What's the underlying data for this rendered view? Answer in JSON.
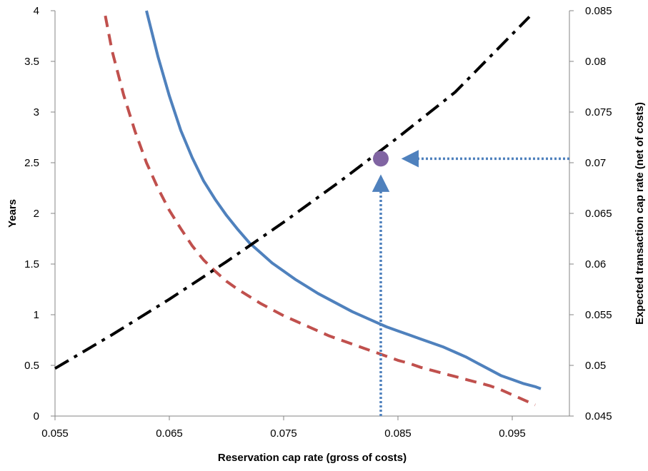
{
  "chart_data": {
    "type": "line",
    "title": "",
    "xlabel": "Reservation cap rate (gross of costs)",
    "ylabel": "Years",
    "y2label": "Expected transaction cap rate (net of costs)",
    "xlim": [
      0.055,
      0.1
    ],
    "ylim": [
      0,
      4
    ],
    "y2lim": [
      0.045,
      0.085
    ],
    "xticks": [
      "0.055",
      "0.065",
      "0.075",
      "0.085",
      "0.095"
    ],
    "xtick_values": [
      0.055,
      0.065,
      0.075,
      0.085,
      0.095
    ],
    "yticks": [
      "0",
      "0.5",
      "1",
      "1.5",
      "2",
      "2.5",
      "3",
      "3.5",
      "4"
    ],
    "ytick_values": [
      0,
      0.5,
      1,
      1.5,
      2,
      2.5,
      3,
      3.5,
      4
    ],
    "y2ticks": [
      "0.045",
      "0.05",
      "0.055",
      "0.06",
      "0.065",
      "0.07",
      "0.075",
      "0.08",
      "0.085"
    ],
    "y2tick_values": [
      0.045,
      0.05,
      0.055,
      0.06,
      0.065,
      0.07,
      0.075,
      0.08,
      0.085
    ],
    "grid": false,
    "legend": "none",
    "series": [
      {
        "style": "solid",
        "color": "#4f81bd",
        "axis": "left",
        "x": [
          0.063,
          0.064,
          0.065,
          0.066,
          0.067,
          0.068,
          0.069,
          0.07,
          0.071,
          0.072,
          0.073,
          0.074,
          0.075,
          0.076,
          0.077,
          0.078,
          0.079,
          0.08,
          0.081,
          0.082,
          0.083,
          0.084,
          0.085,
          0.086,
          0.087,
          0.088,
          0.089,
          0.09,
          0.091,
          0.092,
          0.093,
          0.094,
          0.095,
          0.096,
          0.097,
          0.0975
        ],
        "y": [
          4.0,
          3.55,
          3.16,
          2.82,
          2.55,
          2.32,
          2.14,
          1.98,
          1.84,
          1.71,
          1.61,
          1.51,
          1.43,
          1.35,
          1.28,
          1.21,
          1.15,
          1.09,
          1.03,
          0.98,
          0.93,
          0.88,
          0.84,
          0.8,
          0.76,
          0.72,
          0.68,
          0.63,
          0.58,
          0.52,
          0.46,
          0.4,
          0.36,
          0.32,
          0.29,
          0.27
        ]
      },
      {
        "style": "dashed",
        "color": "#c0504d",
        "axis": "left",
        "x": [
          0.0594,
          0.06,
          0.061,
          0.062,
          0.063,
          0.064,
          0.065,
          0.066,
          0.067,
          0.068,
          0.069,
          0.07,
          0.071,
          0.072,
          0.073,
          0.074,
          0.075,
          0.076,
          0.077,
          0.078,
          0.079,
          0.08,
          0.081,
          0.082,
          0.083,
          0.084,
          0.085,
          0.086,
          0.087,
          0.088,
          0.089,
          0.09,
          0.091,
          0.092,
          0.093,
          0.094,
          0.095,
          0.096,
          0.097
        ],
        "y": [
          3.95,
          3.6,
          3.17,
          2.81,
          2.5,
          2.25,
          2.03,
          1.85,
          1.68,
          1.54,
          1.43,
          1.33,
          1.25,
          1.18,
          1.11,
          1.05,
          0.99,
          0.94,
          0.89,
          0.84,
          0.79,
          0.75,
          0.71,
          0.67,
          0.63,
          0.59,
          0.55,
          0.52,
          0.48,
          0.45,
          0.42,
          0.39,
          0.36,
          0.33,
          0.3,
          0.26,
          0.21,
          0.16,
          0.11
        ]
      },
      {
        "style": "dashdot",
        "color": "#000000",
        "axis": "right",
        "x": [
          0.055,
          0.06,
          0.065,
          0.07,
          0.075,
          0.08,
          0.085,
          0.09,
          0.0965
        ],
        "y": [
          0.0497,
          0.05303,
          0.05653,
          0.06023,
          0.06413,
          0.06821,
          0.07249,
          0.07696,
          0.0844
        ]
      }
    ],
    "annotations": [
      {
        "type": "point",
        "x": 0.0835,
        "y2": 0.0704,
        "color": "#8064a2"
      },
      {
        "type": "arrow",
        "style": "dotted",
        "color": "#4f81bd",
        "from": {
          "x": 0.0835,
          "y2": 0.045
        },
        "to": {
          "x": 0.0835,
          "y2": 0.0685
        }
      },
      {
        "type": "arrow",
        "style": "dotted",
        "color": "#4f81bd",
        "from": {
          "x": 0.1,
          "y2": 0.0704
        },
        "to": {
          "x": 0.0856,
          "y2": 0.0704
        }
      }
    ]
  }
}
